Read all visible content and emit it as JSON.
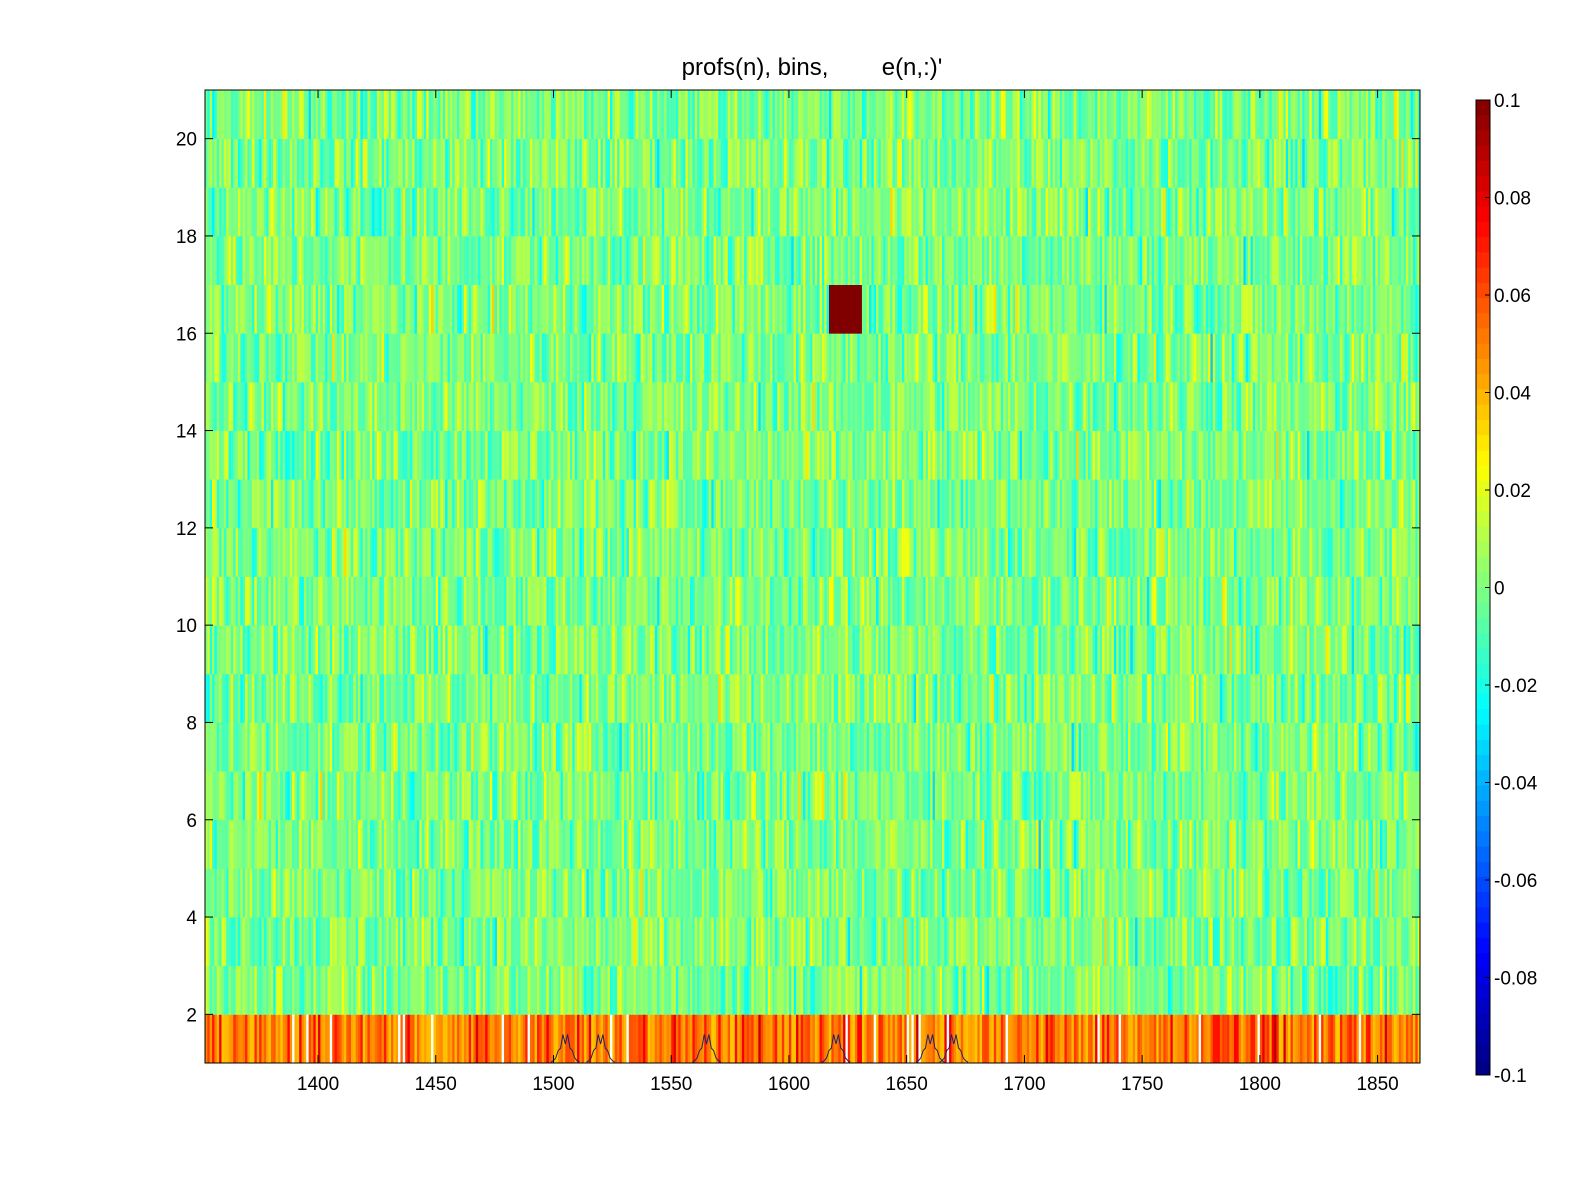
{
  "chart_data": {
    "type": "heatmap",
    "title": "profs(n), bins,        e(n,:)'",
    "xlabel": "",
    "ylabel": "",
    "xlim": [
      1352,
      1868
    ],
    "ylim": [
      1,
      21
    ],
    "x_ticks": [
      1400,
      1450,
      1500,
      1550,
      1600,
      1650,
      1700,
      1750,
      1800,
      1850
    ],
    "y_ticks": [
      2,
      4,
      6,
      8,
      10,
      12,
      14,
      16,
      18,
      20
    ],
    "rows": 20,
    "colormap": "jet",
    "clim": [
      -0.1,
      0.1
    ],
    "colorbar_ticks": [
      "0.1",
      "0.08",
      "0.06",
      "0.04",
      "0.02",
      "0",
      "-0.02",
      "-0.04",
      "-0.06",
      "-0.08",
      "-0.1"
    ],
    "notable_features": [
      {
        "row": 16,
        "x_range": [
          1617,
          1630
        ],
        "value": 0.1
      },
      {
        "row": 1,
        "description": "bottom row mostly positive (red/orange) with white saturated bins",
        "value": 0.06
      }
    ],
    "overlay_peaks_x": [
      1505,
      1520,
      1565,
      1620,
      1660,
      1670
    ],
    "grid": false
  }
}
